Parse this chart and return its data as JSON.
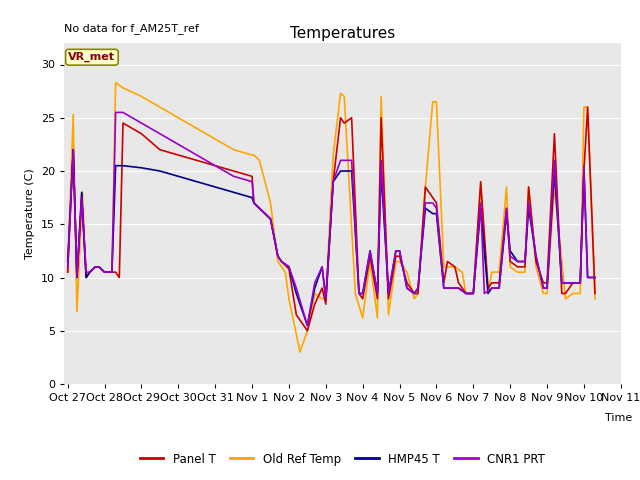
{
  "title": "Temperatures",
  "ylabel": "Temperature (C)",
  "xlabel": "Time",
  "annotation": "No data for f_AM25T_ref",
  "vr_met_label": "VR_met",
  "ylim": [
    0,
    32
  ],
  "yticks": [
    0,
    5,
    10,
    15,
    20,
    25,
    30
  ],
  "background_color": "#e8e8e8",
  "x_labels": [
    "Oct 27",
    "Oct 28",
    "Oct 29",
    "Oct 30",
    "Oct 31",
    "Nov 1",
    "Nov 2",
    "Nov 3",
    "Nov 4",
    "Nov 5",
    "Nov 6",
    "Nov 7",
    "Nov 8",
    "Nov 9",
    "Nov 10",
    "Nov 11"
  ],
  "panel_t_x": [
    0.0,
    0.15,
    0.25,
    0.38,
    0.5,
    0.6,
    0.75,
    0.85,
    1.0,
    1.1,
    1.2,
    1.3,
    1.4,
    1.5,
    2.0,
    2.5,
    3.0,
    3.5,
    4.0,
    4.5,
    5.0,
    5.05,
    5.5,
    5.7,
    5.8,
    6.0,
    6.2,
    6.5,
    6.7,
    6.9,
    7.0,
    7.2,
    7.4,
    7.5,
    7.7,
    7.9,
    8.0,
    8.2,
    8.4,
    8.5,
    8.7,
    8.9,
    9.0,
    9.2,
    9.4,
    9.5,
    9.7,
    9.9,
    10.0,
    10.2,
    10.3,
    10.5,
    10.6,
    10.8,
    11.0,
    11.2,
    11.4,
    11.5,
    11.7,
    11.9,
    12.0,
    12.2,
    12.4,
    12.5,
    12.7,
    12.9,
    13.0,
    13.2,
    13.4,
    13.5,
    13.7,
    13.9,
    14.0,
    14.1,
    14.3
  ],
  "panel_t_y": [
    10.5,
    22.0,
    10.0,
    17.5,
    10.0,
    10.5,
    11.0,
    11.0,
    10.5,
    10.5,
    10.5,
    10.5,
    10.0,
    24.5,
    23.5,
    22.0,
    21.5,
    21.0,
    20.5,
    20.0,
    19.5,
    17.0,
    15.5,
    12.0,
    11.5,
    10.8,
    6.5,
    5.0,
    7.5,
    9.0,
    7.5,
    19.0,
    25.0,
    24.5,
    25.0,
    8.5,
    8.0,
    12.0,
    8.0,
    25.0,
    8.0,
    12.0,
    12.0,
    9.5,
    8.5,
    8.5,
    18.5,
    17.5,
    17.0,
    9.5,
    11.5,
    11.0,
    9.5,
    8.5,
    8.5,
    19.0,
    9.0,
    9.5,
    9.5,
    16.5,
    11.5,
    11.0,
    11.0,
    18.5,
    11.5,
    9.5,
    9.5,
    23.5,
    8.5,
    8.5,
    9.5,
    9.5,
    20.0,
    26.0,
    8.5
  ],
  "old_ref_temp_x": [
    0.0,
    0.15,
    0.25,
    0.4,
    0.5,
    0.6,
    0.75,
    0.85,
    1.0,
    1.1,
    1.2,
    1.3,
    1.5,
    2.0,
    2.5,
    3.0,
    3.5,
    4.0,
    4.5,
    5.0,
    5.05,
    5.2,
    5.5,
    5.7,
    5.8,
    5.9,
    6.0,
    6.3,
    6.5,
    6.7,
    6.9,
    7.0,
    7.2,
    7.4,
    7.5,
    7.8,
    8.0,
    8.2,
    8.4,
    8.5,
    8.7,
    8.9,
    9.0,
    9.2,
    9.4,
    9.5,
    9.7,
    9.9,
    10.0,
    10.2,
    10.3,
    10.5,
    10.7,
    10.8,
    11.0,
    11.2,
    11.4,
    11.5,
    11.7,
    11.9,
    12.0,
    12.2,
    12.4,
    12.5,
    12.7,
    12.9,
    13.0,
    13.2,
    13.5,
    13.7,
    13.9,
    14.0,
    14.1,
    14.3
  ],
  "old_ref_temp_y": [
    10.5,
    25.3,
    6.8,
    18.0,
    10.0,
    10.5,
    11.0,
    11.0,
    10.5,
    10.5,
    10.5,
    28.3,
    27.8,
    27.0,
    26.0,
    25.0,
    24.0,
    23.0,
    22.0,
    21.5,
    21.5,
    21.0,
    17.0,
    11.5,
    11.0,
    10.5,
    8.0,
    3.0,
    5.0,
    8.5,
    8.0,
    8.0,
    21.5,
    27.3,
    27.0,
    8.5,
    6.2,
    11.5,
    6.2,
    27.0,
    6.5,
    11.5,
    11.5,
    10.5,
    8.0,
    8.5,
    18.5,
    26.5,
    26.5,
    11.0,
    11.0,
    11.0,
    10.5,
    8.5,
    8.5,
    18.5,
    8.5,
    10.5,
    10.5,
    18.5,
    11.0,
    10.5,
    10.5,
    18.5,
    11.0,
    8.5,
    8.5,
    18.5,
    8.0,
    8.5,
    8.5,
    26.0,
    26.0,
    8.0
  ],
  "hmp45_t_x": [
    0.0,
    0.15,
    0.25,
    0.38,
    0.5,
    0.6,
    0.75,
    0.85,
    1.0,
    1.1,
    1.2,
    1.3,
    1.4,
    1.5,
    2.0,
    2.5,
    3.0,
    3.5,
    4.0,
    4.5,
    5.0,
    5.05,
    5.5,
    5.7,
    5.8,
    6.0,
    6.2,
    6.5,
    6.7,
    6.9,
    7.0,
    7.2,
    7.4,
    7.5,
    7.7,
    7.9,
    8.0,
    8.2,
    8.4,
    8.5,
    8.7,
    8.9,
    9.0,
    9.2,
    9.4,
    9.5,
    9.7,
    9.9,
    10.0,
    10.2,
    10.3,
    10.5,
    10.6,
    10.8,
    11.0,
    11.2,
    11.4,
    11.5,
    11.7,
    11.9,
    12.0,
    12.2,
    12.4,
    12.5,
    12.7,
    12.9,
    13.0,
    13.2,
    13.4,
    13.5,
    13.7,
    13.9,
    14.0,
    14.1,
    14.3
  ],
  "hmp45_t_y": [
    11.5,
    22.0,
    10.0,
    18.0,
    10.0,
    10.5,
    11.0,
    11.0,
    10.5,
    10.5,
    10.5,
    20.5,
    20.5,
    20.5,
    20.3,
    20.0,
    19.5,
    19.0,
    18.5,
    18.0,
    17.5,
    17.0,
    15.5,
    12.0,
    11.5,
    11.0,
    8.5,
    5.5,
    9.0,
    11.0,
    8.0,
    19.0,
    20.0,
    20.0,
    20.0,
    8.5,
    8.5,
    12.5,
    8.5,
    20.0,
    8.5,
    12.5,
    12.5,
    9.0,
    8.5,
    9.0,
    16.5,
    16.0,
    16.0,
    9.0,
    9.0,
    9.0,
    9.0,
    8.5,
    8.5,
    16.5,
    8.5,
    9.0,
    9.0,
    16.0,
    12.5,
    11.5,
    11.5,
    16.5,
    12.0,
    9.0,
    9.0,
    20.0,
    9.5,
    9.5,
    9.5,
    9.5,
    20.0,
    10.0,
    10.0
  ],
  "cnr1_prt_x": [
    0.0,
    0.15,
    0.25,
    0.38,
    0.5,
    0.6,
    0.75,
    0.85,
    1.0,
    1.1,
    1.2,
    1.3,
    1.4,
    1.5,
    2.0,
    2.5,
    3.0,
    3.5,
    4.0,
    4.5,
    5.0,
    5.05,
    5.5,
    5.7,
    5.8,
    6.0,
    6.2,
    6.5,
    6.7,
    6.9,
    7.0,
    7.2,
    7.4,
    7.5,
    7.7,
    7.9,
    8.0,
    8.2,
    8.4,
    8.5,
    8.7,
    8.9,
    9.0,
    9.2,
    9.4,
    9.5,
    9.7,
    9.9,
    10.0,
    10.2,
    10.3,
    10.5,
    10.6,
    10.8,
    11.0,
    11.2,
    11.3,
    11.5,
    11.7,
    11.9,
    12.0,
    12.2,
    12.4,
    12.5,
    12.7,
    12.9,
    13.0,
    13.2,
    13.4,
    13.5,
    13.7,
    13.9,
    14.0,
    14.1,
    14.3
  ],
  "cnr1_prt_y": [
    11.0,
    22.0,
    10.0,
    17.5,
    10.5,
    10.5,
    11.0,
    11.0,
    10.5,
    10.5,
    10.5,
    25.5,
    25.5,
    25.5,
    24.5,
    23.5,
    22.5,
    21.5,
    20.5,
    19.5,
    19.0,
    17.0,
    15.5,
    12.0,
    11.5,
    11.0,
    9.0,
    5.5,
    9.5,
    11.0,
    8.0,
    19.0,
    21.0,
    21.0,
    21.0,
    8.5,
    8.5,
    12.5,
    8.5,
    21.0,
    8.5,
    12.5,
    12.5,
    9.0,
    8.5,
    9.0,
    17.0,
    17.0,
    16.5,
    9.0,
    9.0,
    9.0,
    9.0,
    8.5,
    8.5,
    17.0,
    8.5,
    9.0,
    9.0,
    16.5,
    12.0,
    11.5,
    11.5,
    17.0,
    12.0,
    9.0,
    9.0,
    21.0,
    9.5,
    9.5,
    9.5,
    9.5,
    20.5,
    10.0,
    10.0
  ],
  "legend": [
    {
      "label": "Panel T",
      "color": "#cc0000"
    },
    {
      "label": "Old Ref Temp",
      "color": "#ffa500"
    },
    {
      "label": "HMP45 T",
      "color": "#00008b"
    },
    {
      "label": "CNR1 PRT",
      "color": "#9900cc"
    }
  ]
}
